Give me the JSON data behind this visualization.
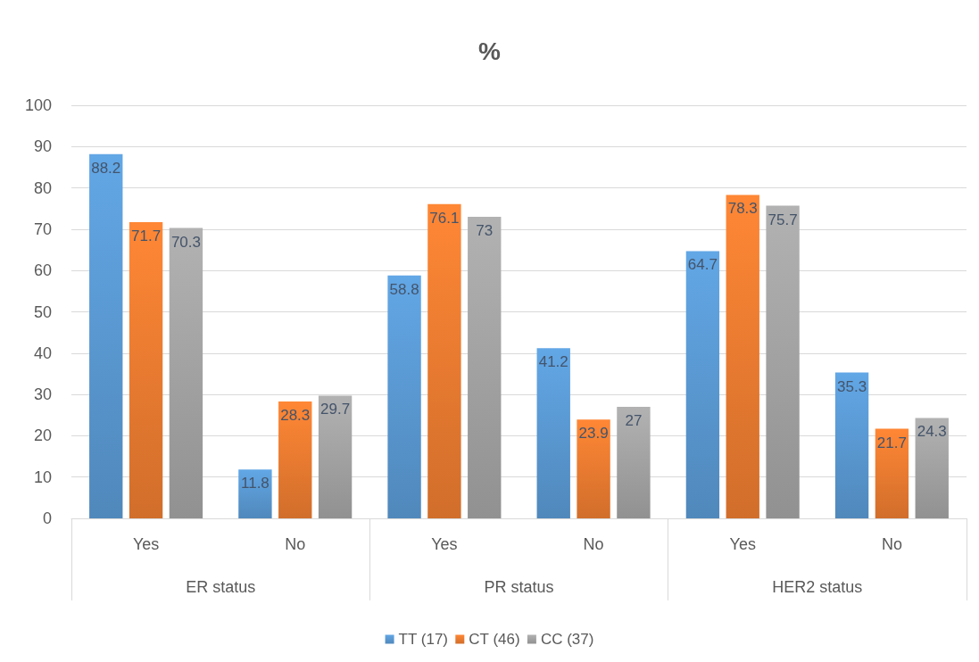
{
  "chart_data": {
    "type": "bar",
    "title": "%",
    "categories": [
      "Yes",
      "No",
      "Yes",
      "No",
      "Yes",
      "No"
    ],
    "annotations": [
      "ER status",
      "PR status",
      "HER2 status"
    ],
    "series": [
      {
        "name": "TT (17)",
        "color": "#5b9bd5",
        "values": [
          88.2,
          11.8,
          58.8,
          41.2,
          64.7,
          35.3
        ]
      },
      {
        "name": "CT (46)",
        "color": "#ed7d31",
        "values": [
          71.7,
          28.3,
          76.1,
          23.9,
          78.3,
          21.7
        ]
      },
      {
        "name": "CC (37)",
        "color": "#a5a5a5",
        "values": [
          70.3,
          29.7,
          73,
          27,
          75.7,
          24.3
        ]
      }
    ],
    "ylim": [
      0,
      100
    ],
    "yticks": [
      0,
      10,
      20,
      30,
      40,
      50,
      60,
      70,
      80,
      90,
      100
    ],
    "grid": "y",
    "legend": "bottom",
    "data_labels": true
  }
}
